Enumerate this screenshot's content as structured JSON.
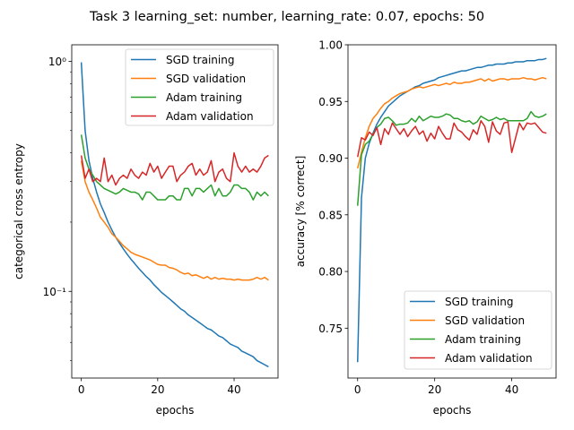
{
  "figure": {
    "title": "Task 3 learning_set: number, learning_rate: 0.07, epochs: 50"
  },
  "colors": {
    "SGD training": "#1f77b4",
    "SGD validation": "#ff7f0e",
    "Adam training": "#2ca02c",
    "Adam validation": "#d62728"
  },
  "chart_data": [
    {
      "type": "line",
      "xlabel": "epochs",
      "ylabel": "categorical cross entropy",
      "yscale": "log",
      "xlim": [
        -2.5,
        51.5
      ],
      "ylim": [
        0.042,
        1.18
      ],
      "xticks": [
        0,
        20,
        40
      ],
      "xtick_labels": [
        "0",
        "20",
        "40"
      ],
      "yticks": [
        1.0,
        0.1
      ],
      "ytick_labels": [
        "10⁰",
        "10⁻¹"
      ],
      "legend_position": "upper right",
      "x": [
        0,
        1,
        2,
        3,
        4,
        5,
        6,
        7,
        8,
        9,
        10,
        11,
        12,
        13,
        14,
        15,
        16,
        17,
        18,
        19,
        20,
        21,
        22,
        23,
        24,
        25,
        26,
        27,
        28,
        29,
        30,
        31,
        32,
        33,
        34,
        35,
        36,
        37,
        38,
        39,
        40,
        41,
        42,
        43,
        44,
        45,
        46,
        47,
        48,
        49
      ],
      "series": [
        {
          "name": "SGD training",
          "values": [
            0.99,
            0.5,
            0.37,
            0.31,
            0.27,
            0.24,
            0.22,
            0.2,
            0.185,
            0.172,
            0.162,
            0.153,
            0.145,
            0.138,
            0.132,
            0.126,
            0.121,
            0.116,
            0.112,
            0.107,
            0.103,
            0.099,
            0.096,
            0.093,
            0.09,
            0.087,
            0.084,
            0.082,
            0.079,
            0.077,
            0.075,
            0.073,
            0.071,
            0.069,
            0.068,
            0.066,
            0.064,
            0.063,
            0.061,
            0.059,
            0.058,
            0.057,
            0.055,
            0.054,
            0.053,
            0.052,
            0.05,
            0.049,
            0.048,
            0.047
          ]
        },
        {
          "name": "SGD validation",
          "values": [
            0.37,
            0.3,
            0.27,
            0.25,
            0.23,
            0.21,
            0.2,
            0.19,
            0.178,
            0.172,
            0.165,
            0.158,
            0.153,
            0.148,
            0.145,
            0.143,
            0.141,
            0.139,
            0.137,
            0.134,
            0.131,
            0.13,
            0.13,
            0.127,
            0.126,
            0.124,
            0.121,
            0.119,
            0.12,
            0.117,
            0.118,
            0.116,
            0.114,
            0.116,
            0.113,
            0.115,
            0.113,
            0.114,
            0.113,
            0.113,
            0.112,
            0.113,
            0.112,
            0.112,
            0.112,
            0.113,
            0.115,
            0.113,
            0.115,
            0.112
          ]
        },
        {
          "name": "Adam training",
          "values": [
            0.48,
            0.38,
            0.34,
            0.32,
            0.3,
            0.29,
            0.28,
            0.275,
            0.27,
            0.265,
            0.27,
            0.28,
            0.275,
            0.27,
            0.27,
            0.265,
            0.25,
            0.27,
            0.27,
            0.26,
            0.25,
            0.25,
            0.25,
            0.26,
            0.26,
            0.25,
            0.25,
            0.28,
            0.28,
            0.26,
            0.28,
            0.28,
            0.27,
            0.28,
            0.29,
            0.26,
            0.28,
            0.26,
            0.26,
            0.27,
            0.29,
            0.29,
            0.28,
            0.28,
            0.27,
            0.25,
            0.27,
            0.26,
            0.27,
            0.26
          ]
        },
        {
          "name": "Adam validation",
          "values": [
            0.39,
            0.31,
            0.34,
            0.3,
            0.31,
            0.3,
            0.38,
            0.3,
            0.32,
            0.29,
            0.31,
            0.32,
            0.31,
            0.34,
            0.32,
            0.31,
            0.33,
            0.32,
            0.36,
            0.33,
            0.35,
            0.31,
            0.33,
            0.35,
            0.35,
            0.3,
            0.32,
            0.33,
            0.35,
            0.36,
            0.32,
            0.34,
            0.32,
            0.33,
            0.37,
            0.3,
            0.33,
            0.34,
            0.31,
            0.3,
            0.4,
            0.35,
            0.33,
            0.35,
            0.33,
            0.34,
            0.33,
            0.35,
            0.38,
            0.39
          ]
        }
      ]
    },
    {
      "type": "line",
      "xlabel": "epochs",
      "ylabel": "accuracy [% correct]",
      "yscale": "linear",
      "xlim": [
        -2.5,
        51.5
      ],
      "ylim": [
        0.706,
        1.0
      ],
      "xticks": [
        0,
        20,
        40
      ],
      "xtick_labels": [
        "0",
        "20",
        "40"
      ],
      "yticks": [
        0.75,
        0.8,
        0.85,
        0.9,
        0.95,
        1.0
      ],
      "ytick_labels": [
        "0.75",
        "0.80",
        "0.85",
        "0.90",
        "0.95",
        "1.00"
      ],
      "legend_position": "lower right",
      "x": [
        0,
        1,
        2,
        3,
        4,
        5,
        6,
        7,
        8,
        9,
        10,
        11,
        12,
        13,
        14,
        15,
        16,
        17,
        18,
        19,
        20,
        21,
        22,
        23,
        24,
        25,
        26,
        27,
        28,
        29,
        30,
        31,
        32,
        33,
        34,
        35,
        36,
        37,
        38,
        39,
        40,
        41,
        42,
        43,
        44,
        45,
        46,
        47,
        48,
        49
      ],
      "series": [
        {
          "name": "SGD training",
          "values": [
            0.72,
            0.865,
            0.9,
            0.913,
            0.922,
            0.93,
            0.936,
            0.941,
            0.946,
            0.949,
            0.952,
            0.955,
            0.957,
            0.959,
            0.961,
            0.963,
            0.964,
            0.966,
            0.967,
            0.968,
            0.969,
            0.971,
            0.972,
            0.973,
            0.974,
            0.975,
            0.976,
            0.977,
            0.977,
            0.978,
            0.979,
            0.98,
            0.98,
            0.981,
            0.982,
            0.982,
            0.983,
            0.983,
            0.983,
            0.984,
            0.984,
            0.985,
            0.985,
            0.985,
            0.986,
            0.986,
            0.986,
            0.987,
            0.987,
            0.988
          ]
        },
        {
          "name": "SGD validation",
          "values": [
            0.891,
            0.905,
            0.918,
            0.928,
            0.935,
            0.939,
            0.944,
            0.948,
            0.95,
            0.953,
            0.955,
            0.957,
            0.958,
            0.959,
            0.961,
            0.962,
            0.963,
            0.962,
            0.963,
            0.964,
            0.965,
            0.964,
            0.965,
            0.966,
            0.965,
            0.967,
            0.966,
            0.966,
            0.967,
            0.967,
            0.968,
            0.969,
            0.97,
            0.968,
            0.97,
            0.968,
            0.969,
            0.97,
            0.97,
            0.969,
            0.97,
            0.97,
            0.97,
            0.971,
            0.97,
            0.97,
            0.969,
            0.97,
            0.971,
            0.97
          ]
        },
        {
          "name": "Adam training",
          "values": [
            0.858,
            0.903,
            0.912,
            0.915,
            0.921,
            0.927,
            0.93,
            0.935,
            0.936,
            0.933,
            0.929,
            0.93,
            0.93,
            0.931,
            0.935,
            0.932,
            0.937,
            0.933,
            0.935,
            0.937,
            0.936,
            0.936,
            0.937,
            0.939,
            0.938,
            0.935,
            0.935,
            0.933,
            0.932,
            0.933,
            0.93,
            0.932,
            0.937,
            0.935,
            0.933,
            0.934,
            0.936,
            0.934,
            0.935,
            0.933,
            0.933,
            0.933,
            0.933,
            0.933,
            0.935,
            0.941,
            0.937,
            0.936,
            0.937,
            0.939
          ]
        },
        {
          "name": "Adam validation",
          "values": [
            0.901,
            0.918,
            0.916,
            0.923,
            0.92,
            0.927,
            0.912,
            0.926,
            0.921,
            0.931,
            0.926,
            0.921,
            0.926,
            0.919,
            0.924,
            0.928,
            0.921,
            0.924,
            0.915,
            0.922,
            0.917,
            0.928,
            0.922,
            0.917,
            0.917,
            0.931,
            0.925,
            0.923,
            0.919,
            0.916,
            0.925,
            0.921,
            0.933,
            0.928,
            0.914,
            0.932,
            0.924,
            0.921,
            0.931,
            0.932,
            0.905,
            0.918,
            0.931,
            0.925,
            0.931,
            0.93,
            0.931,
            0.927,
            0.923,
            0.922
          ]
        }
      ]
    }
  ]
}
